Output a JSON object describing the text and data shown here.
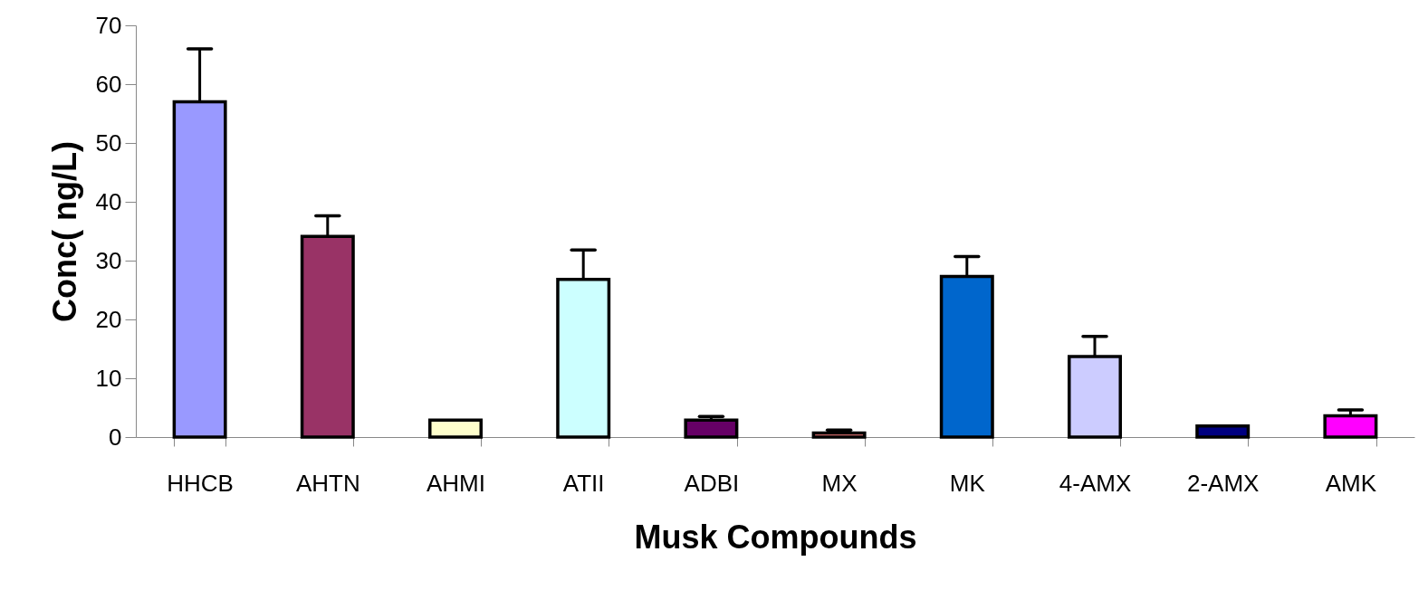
{
  "chart_data": {
    "type": "bar",
    "xlabel": "Musk Compounds",
    "ylabel": "Conc( ng/L)",
    "categories": [
      "HHCB",
      "AHTN",
      "AHMI",
      "ATII",
      "ADBI",
      "MX",
      "MK",
      "4-AMX",
      "2-AMX",
      "AMK"
    ],
    "values": [
      57,
      34.1,
      2.9,
      26.8,
      2.9,
      0.7,
      27.3,
      13.7,
      1.9,
      3.6
    ],
    "errors": [
      9,
      3.5,
      null,
      5,
      0.6,
      0.5,
      3.4,
      3.4,
      null,
      1
    ],
    "colors": [
      "#9999ff",
      "#993366",
      "#ffffcc",
      "#ccffff",
      "#660066",
      "#ff8080",
      "#0066cc",
      "#ccccff",
      "#000080",
      "#ff00ff"
    ],
    "ylim": [
      0,
      70
    ],
    "yticks": [
      0,
      10,
      20,
      30,
      40,
      50,
      60,
      70
    ],
    "grid": false
  }
}
